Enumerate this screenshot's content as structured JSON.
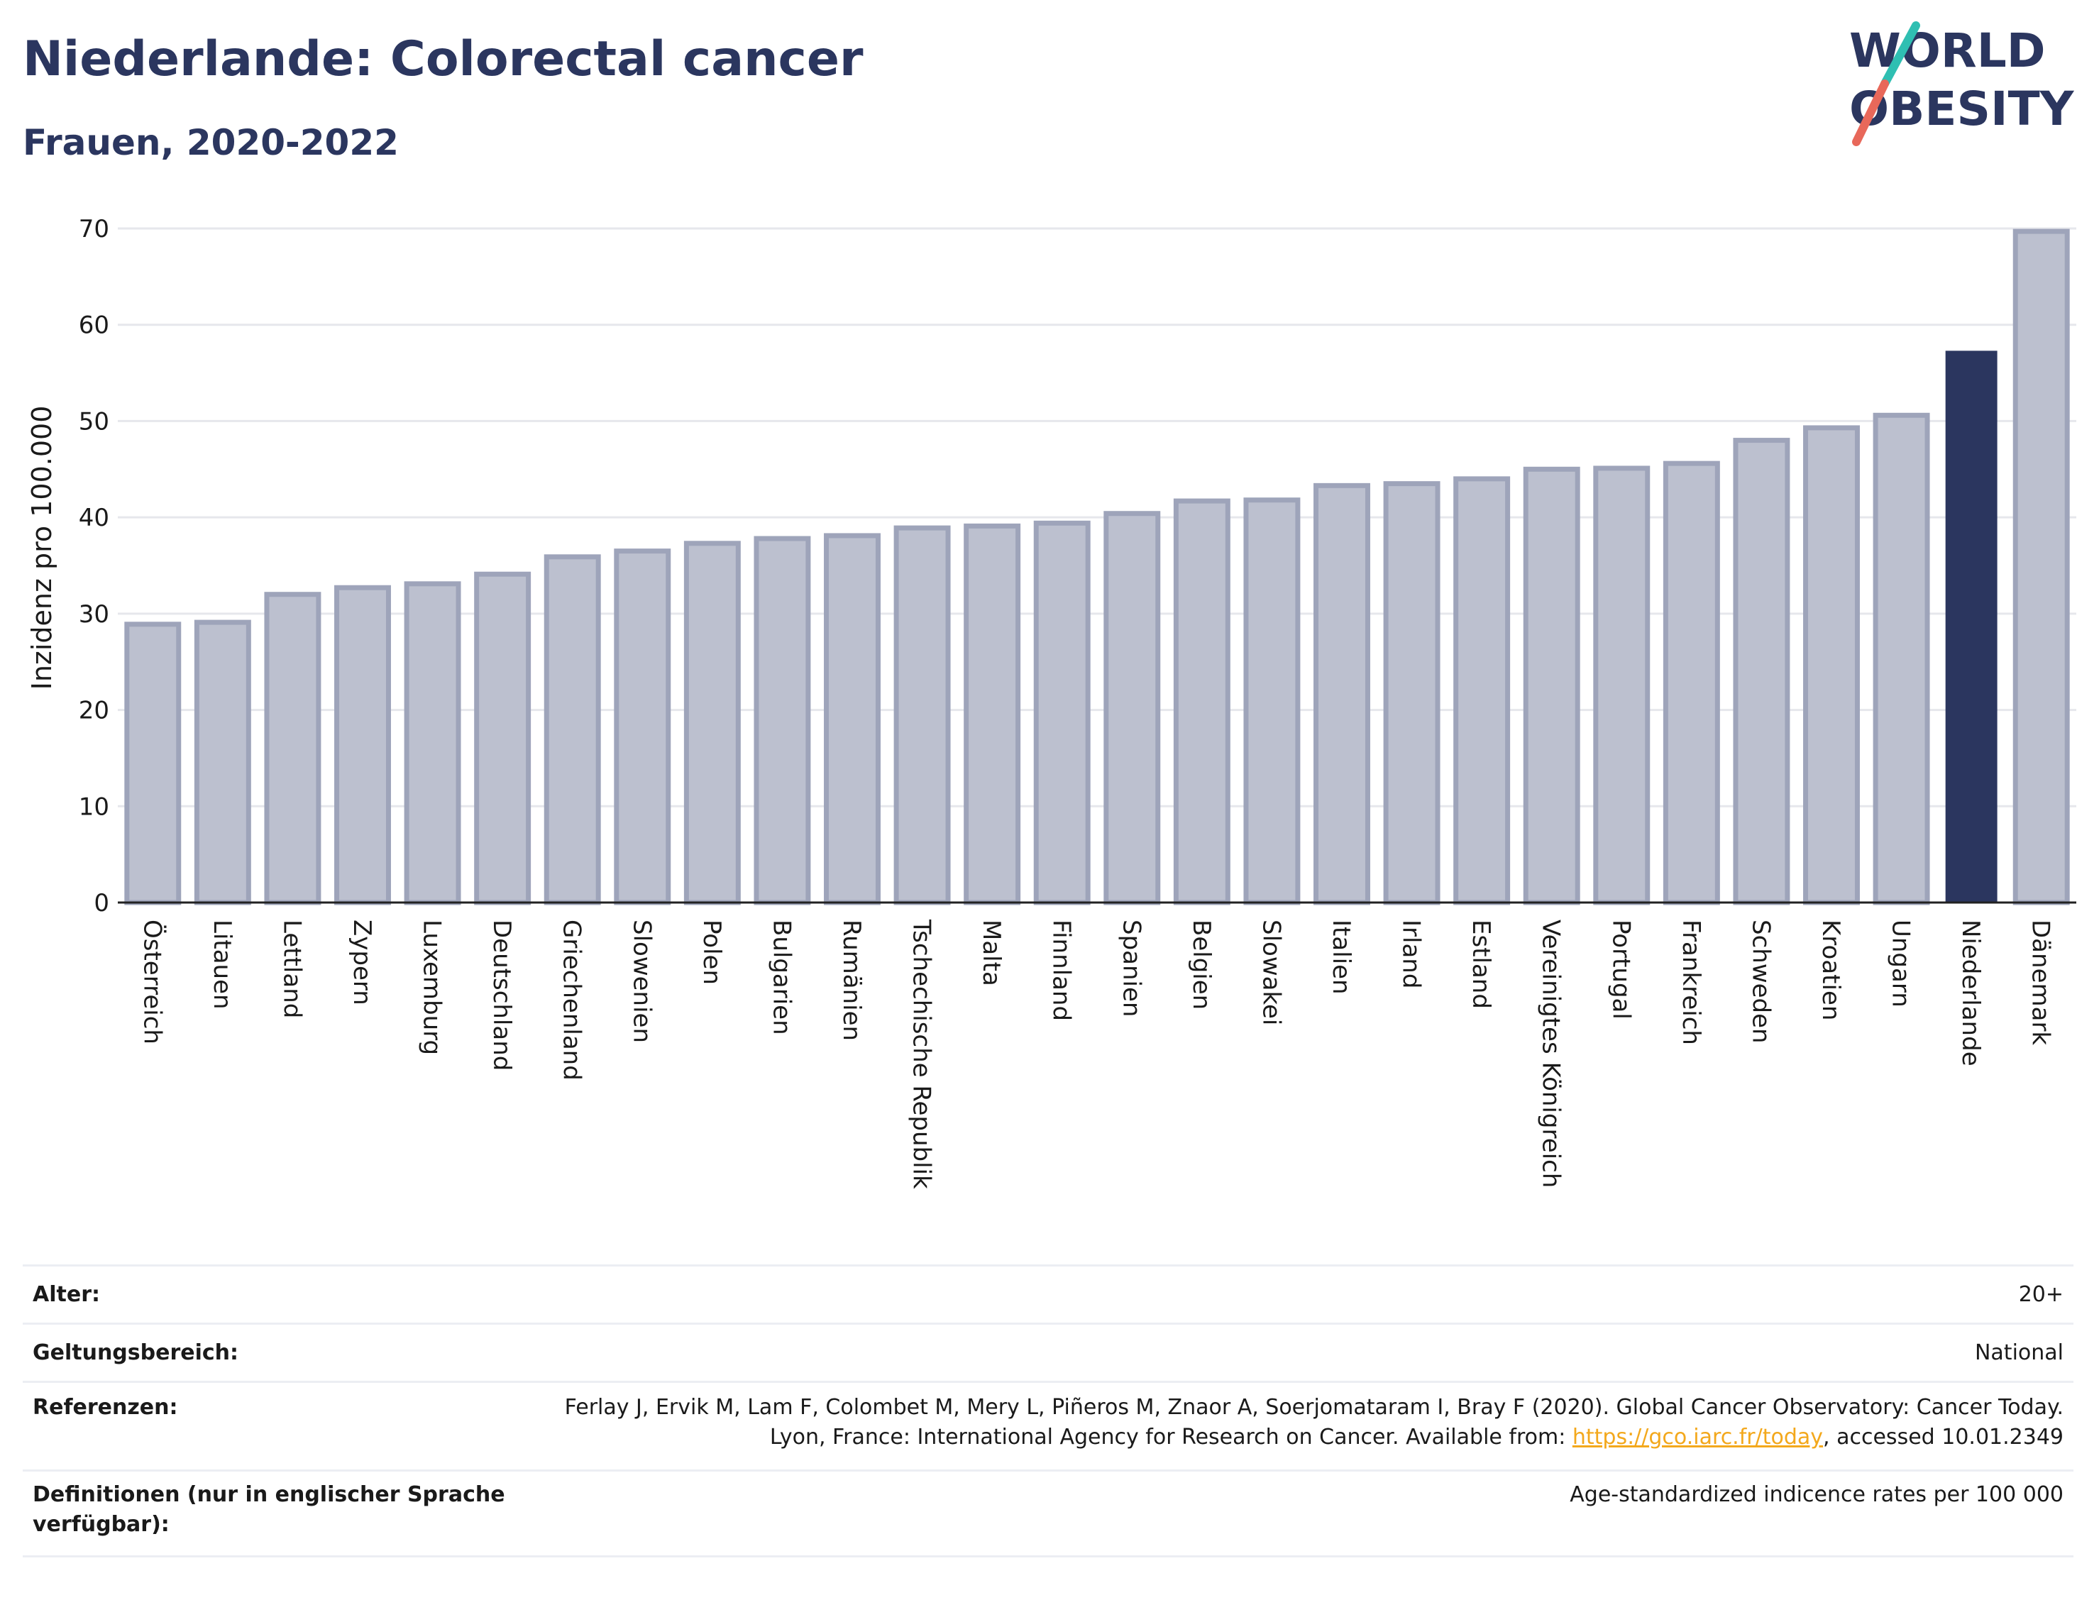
{
  "header": {
    "title": "Niederlande: Colorectal cancer",
    "subtitle": "Frauen, 2020-2022"
  },
  "logo": {
    "line1": "WORLD",
    "line2": "OBESITY",
    "colors": {
      "dark": "#2b365f",
      "teal": "#2fbfb2",
      "coral": "#e8685a"
    }
  },
  "colors": {
    "bar": "#bcc0cf",
    "bar_border": "#9ea4ba",
    "highlight": "#2b365f",
    "grid": "#e6e7ec"
  },
  "chart_data": {
    "type": "bar",
    "title": "",
    "ylabel": "Inzidenz pro 100.000",
    "xlabel": "",
    "ylim": [
      0,
      70
    ],
    "yticks": [
      0,
      10,
      20,
      30,
      40,
      50,
      60,
      70
    ],
    "grid": true,
    "highlight": "Niederlande",
    "categories": [
      "Österreich",
      "Litauen",
      "Lettland",
      "Zypern",
      "Luxemburg",
      "Deutschland",
      "Griechenland",
      "Slowenien",
      "Polen",
      "Bulgarien",
      "Rumänien",
      "Tschechische Republik",
      "Malta",
      "Finnland",
      "Spanien",
      "Belgien",
      "Slowakei",
      "Italien",
      "Irland",
      "Estland",
      "Vereinigtes Königreich",
      "Portugal",
      "Frankreich",
      "Schweden",
      "Kroatien",
      "Ungarn",
      "Niederlande",
      "Dänemark"
    ],
    "values": [
      28.9,
      29.1,
      32.0,
      32.7,
      33.1,
      34.1,
      35.9,
      36.5,
      37.3,
      37.8,
      38.1,
      38.9,
      39.1,
      39.4,
      40.4,
      41.7,
      41.8,
      43.3,
      43.5,
      44.0,
      45.0,
      45.1,
      45.6,
      48.0,
      49.3,
      50.6,
      57.3,
      69.7
    ]
  },
  "meta": {
    "rows": [
      {
        "label": "Alter:",
        "value": "20+"
      },
      {
        "label": "Geltungsbereich:",
        "value": "National"
      },
      {
        "label": "Referenzen:",
        "value_pre": "Ferlay J, Ervik M, Lam F, Colombet M, Mery L, Piñeros M, Znaor A, Soerjomataram I, Bray F (2020). Global Cancer Observatory: Cancer Today. Lyon, France: International Agency for Research on Cancer. Available from: ",
        "link": "https://gco.iarc.fr/today",
        "value_post": ", accessed 10.01.2349"
      },
      {
        "label": "Definitionen (nur in englischer Sprache verfügbar):",
        "value": "Age-standardized indicence rates per 100 000"
      }
    ]
  }
}
